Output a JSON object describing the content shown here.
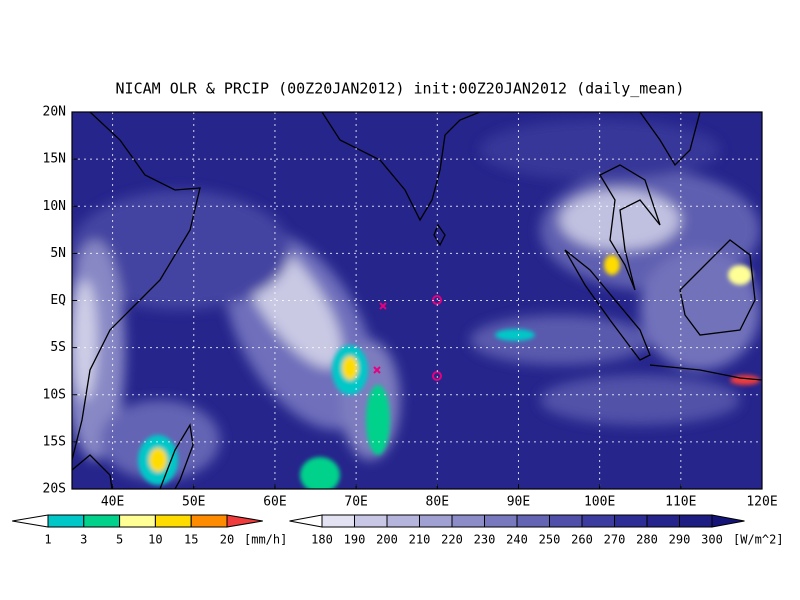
{
  "header": {
    "title": "NICAM OLR & PRCIP (00Z20JAN2012) init:00Z20JAN2012 (daily_mean)"
  },
  "axes": {
    "x_labels": [
      "40E",
      "50E",
      "60E",
      "70E",
      "80E",
      "90E",
      "100E",
      "110E",
      "120E"
    ],
    "y_labels": [
      "20N",
      "15N",
      "10N",
      "5N",
      "EQ",
      "5S",
      "10S",
      "15S",
      "20S"
    ]
  },
  "precip_bar": {
    "labels": [
      "1",
      "3",
      "5",
      "10",
      "15",
      "20"
    ],
    "unit": "[mm/h]",
    "colors": [
      "#ffffff",
      "#00c8c8",
      "#00d28c",
      "#ffff96",
      "#ffdc00",
      "#ff8c00",
      "#f03c3c"
    ]
  },
  "olr_bar": {
    "labels": [
      "180",
      "190",
      "200",
      "210",
      "220",
      "230",
      "240",
      "250",
      "260",
      "270",
      "280",
      "290",
      "300"
    ],
    "unit": "[W/m^2]",
    "colors": [
      "#ffffff",
      "#e2e2f2",
      "#c8c8e6",
      "#b4b4dc",
      "#a0a0d2",
      "#8c8cc8",
      "#7878be",
      "#6464b4",
      "#5050aa",
      "#3c3ca0",
      "#2d2d96",
      "#24248c",
      "#1c1c82",
      "#141478"
    ]
  }
}
